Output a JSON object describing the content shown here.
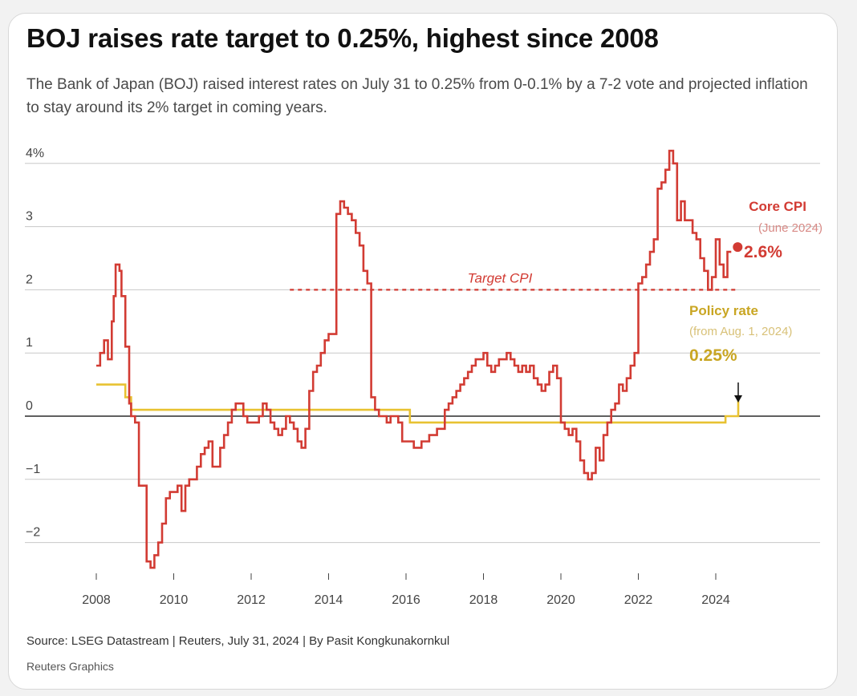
{
  "header": {
    "title": "BOJ raises rate target to 0.25%, highest since 2008",
    "subtitle": "The Bank of Japan (BOJ) raised interest rates on July 31 to 0.25% from 0-0.1% by a 7-2 vote and projected inflation to stay around its 2% target in coming years."
  },
  "footer": {
    "source": "Source: LSEG Datastream | Reuters, July 31, 2024 | By Pasit Kongkunakornkul",
    "credit": "Reuters Graphics"
  },
  "colors": {
    "core_cpi": "#d23b33",
    "policy_rate": "#e8c232",
    "policy_label": "#c9a623",
    "target_line": "#d23b33",
    "zero_line": "#000000",
    "grid": "#c8c8c8"
  },
  "chart_data": {
    "type": "line",
    "xlim": [
      2008,
      2024.75
    ],
    "ylim": [
      -2.4,
      4.3
    ],
    "grid": true,
    "y_ticks": [
      {
        "value": 4,
        "label": "4%"
      },
      {
        "value": 3,
        "label": "3"
      },
      {
        "value": 2,
        "label": "2"
      },
      {
        "value": 1,
        "label": "1"
      },
      {
        "value": 0,
        "label": "0"
      },
      {
        "value": -1,
        "label": "−1"
      },
      {
        "value": -2,
        "label": "−2"
      }
    ],
    "x_ticks": [
      {
        "value": 2008,
        "label": "2008"
      },
      {
        "value": 2010,
        "label": "2010"
      },
      {
        "value": 2012,
        "label": "2012"
      },
      {
        "value": 2014,
        "label": "2014"
      },
      {
        "value": 2016,
        "label": "2016"
      },
      {
        "value": 2018,
        "label": "2018"
      },
      {
        "value": 2020,
        "label": "2020"
      },
      {
        "value": 2022,
        "label": "2022"
      },
      {
        "value": 2024,
        "label": "2024"
      }
    ],
    "series": [
      {
        "name": "Core CPI",
        "step": true,
        "x": [
          2008.0,
          2008.1,
          2008.2,
          2008.3,
          2008.4,
          2008.45,
          2008.5,
          2008.55,
          2008.6,
          2008.65,
          2008.75,
          2008.85,
          2008.9,
          2009.0,
          2009.1,
          2009.3,
          2009.4,
          2009.5,
          2009.55,
          2009.6,
          2009.7,
          2009.8,
          2009.9,
          2010.1,
          2010.2,
          2010.3,
          2010.4,
          2010.5,
          2010.6,
          2010.7,
          2010.8,
          2010.9,
          2011.0,
          2011.2,
          2011.3,
          2011.4,
          2011.5,
          2011.6,
          2011.7,
          2011.8,
          2011.9,
          2012.0,
          2012.1,
          2012.2,
          2012.3,
          2012.4,
          2012.5,
          2012.6,
          2012.7,
          2012.8,
          2012.9,
          2013.0,
          2013.1,
          2013.2,
          2013.3,
          2013.4,
          2013.5,
          2013.6,
          2013.7,
          2013.8,
          2013.9,
          2014.0,
          2014.1,
          2014.2,
          2014.3,
          2014.4,
          2014.5,
          2014.6,
          2014.7,
          2014.8,
          2014.9,
          2015.0,
          2015.1,
          2015.2,
          2015.3,
          2015.4,
          2015.5,
          2015.6,
          2015.7,
          2015.8,
          2015.9,
          2016.0,
          2016.2,
          2016.4,
          2016.6,
          2016.8,
          2017.0,
          2017.1,
          2017.2,
          2017.3,
          2017.4,
          2017.5,
          2017.6,
          2017.7,
          2017.8,
          2017.9,
          2018.0,
          2018.1,
          2018.2,
          2018.3,
          2018.4,
          2018.5,
          2018.6,
          2018.7,
          2018.8,
          2018.9,
          2019.0,
          2019.1,
          2019.2,
          2019.3,
          2019.4,
          2019.5,
          2019.6,
          2019.7,
          2019.8,
          2019.9,
          2020.0,
          2020.1,
          2020.2,
          2020.3,
          2020.4,
          2020.5,
          2020.6,
          2020.7,
          2020.8,
          2020.9,
          2021.0,
          2021.1,
          2021.2,
          2021.3,
          2021.4,
          2021.5,
          2021.6,
          2021.7,
          2021.8,
          2021.9,
          2022.0,
          2022.1,
          2022.2,
          2022.3,
          2022.4,
          2022.5,
          2022.6,
          2022.7,
          2022.8,
          2022.9,
          2023.0,
          2023.1,
          2023.2,
          2023.3,
          2023.4,
          2023.5,
          2023.6,
          2023.7,
          2023.8,
          2023.9,
          2024.0,
          2024.1,
          2024.2,
          2024.3,
          2024.4
        ],
        "values": [
          0.8,
          1.0,
          1.2,
          0.9,
          1.5,
          1.9,
          2.4,
          2.4,
          2.3,
          1.9,
          1.1,
          0.2,
          0.0,
          -0.1,
          -1.1,
          -2.3,
          -2.4,
          -2.2,
          -2.2,
          -2.0,
          -1.7,
          -1.3,
          -1.2,
          -1.1,
          -1.5,
          -1.1,
          -1.0,
          -1.0,
          -0.8,
          -0.6,
          -0.5,
          -0.4,
          -0.8,
          -0.5,
          -0.3,
          -0.1,
          0.1,
          0.2,
          0.2,
          0.0,
          -0.1,
          -0.1,
          -0.1,
          0.0,
          0.2,
          0.1,
          -0.1,
          -0.2,
          -0.3,
          -0.2,
          0.0,
          -0.1,
          -0.2,
          -0.4,
          -0.5,
          -0.2,
          0.4,
          0.7,
          0.8,
          1.0,
          1.2,
          1.3,
          1.3,
          3.2,
          3.4,
          3.3,
          3.2,
          3.1,
          2.9,
          2.7,
          2.3,
          2.1,
          0.3,
          0.1,
          0.0,
          0.0,
          -0.1,
          0.0,
          0.0,
          -0.1,
          -0.4,
          -0.4,
          -0.5,
          -0.4,
          -0.3,
          -0.2,
          0.1,
          0.2,
          0.3,
          0.4,
          0.5,
          0.6,
          0.7,
          0.8,
          0.9,
          0.9,
          1.0,
          0.8,
          0.7,
          0.8,
          0.9,
          0.9,
          1.0,
          0.9,
          0.8,
          0.7,
          0.8,
          0.7,
          0.8,
          0.6,
          0.5,
          0.4,
          0.5,
          0.7,
          0.8,
          0.6,
          -0.1,
          -0.2,
          -0.3,
          -0.2,
          -0.4,
          -0.7,
          -0.9,
          -1.0,
          -0.9,
          -0.5,
          -0.7,
          -0.3,
          -0.1,
          0.1,
          0.2,
          0.5,
          0.4,
          0.6,
          0.8,
          1.0,
          2.1,
          2.2,
          2.4,
          2.6,
          2.8,
          3.6,
          3.7,
          3.9,
          4.2,
          4.0,
          3.1,
          3.4,
          3.1,
          3.1,
          2.9,
          2.8,
          2.5,
          2.3,
          2.0,
          2.2,
          2.8,
          2.4,
          2.2,
          2.6,
          2.6
        ]
      },
      {
        "name": "Policy rate",
        "step": true,
        "x": [
          2008.0,
          2008.75,
          2008.9,
          2016.1,
          2024.25,
          2024.58,
          2024.6
        ],
        "values": [
          0.5,
          0.3,
          0.1,
          -0.1,
          0.0,
          0.25,
          0.25
        ]
      }
    ],
    "target_cpi": {
      "value": 2,
      "x_start": 2013.0,
      "x_end": 2024.6,
      "label": "Target CPI"
    },
    "annotations": {
      "core_cpi_title": "Core CPI",
      "core_cpi_date": "(June 2024)",
      "core_cpi_value": "2.6%",
      "policy_rate_title": "Policy rate",
      "policy_rate_date": "(from Aug. 1, 2024)",
      "policy_rate_value": "0.25%"
    }
  }
}
